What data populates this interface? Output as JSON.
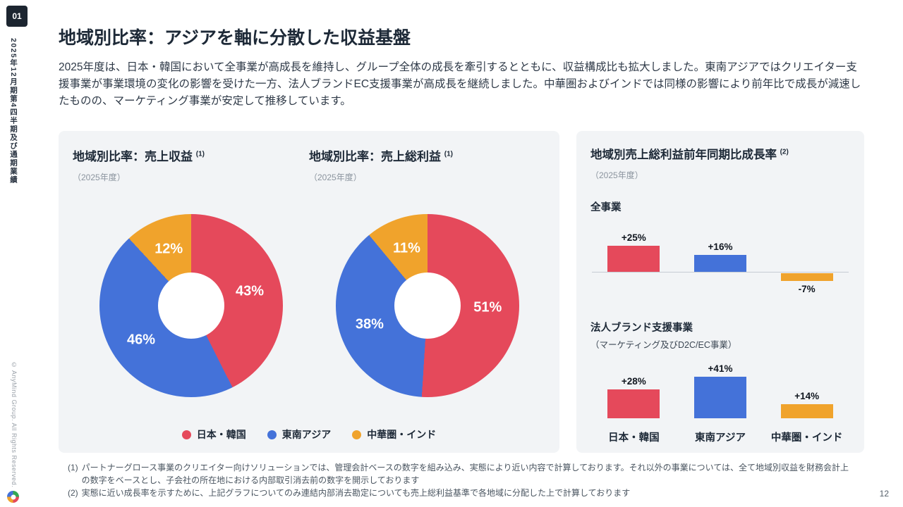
{
  "sidebar": {
    "chapter": "01",
    "vertical_title": "2025年12月期第4四半期及び通期業績",
    "copyright": "© AnyMind Group. All Rights Reserved."
  },
  "header": {
    "title": "地域別比率：アジアを軸に分散した収益基盤",
    "body": "2025年度は、日本・韓国において全事業が高成長を維持し、グループ全体の成長を牽引するとともに、収益構成比も拡大しました。東南アジアではクリエイター支援事業が事業環境の変化の影響を受けた一方、法人ブランドEC支援事業が高成長を継続しました。中華圏およびインドでは同様の影響により前年比で成長が減速したものの、マーケティング事業が安定して推移しています。"
  },
  "left_panel": {
    "charts": [
      {
        "title": "地域別比率：売上収益",
        "sup": "(1)",
        "subtitle": "（2025年度）"
      },
      {
        "title": "地域別比率：売上総利益",
        "sup": "(1)",
        "subtitle": "（2025年度）"
      }
    ],
    "legend": [
      {
        "label": "日本・韓国",
        "color": "#E5495B"
      },
      {
        "label": "東南アジア",
        "color": "#4472D9"
      },
      {
        "label": "中華圏・インド",
        "color": "#F0A32C"
      }
    ]
  },
  "right_panel": {
    "title": "地域別売上総利益前年同期比成長率",
    "sup": "(2)",
    "subtitle": "（2025年度）",
    "group1_label": "全事業",
    "group2_label": "法人ブランド支援事業",
    "group2_sublabel": "（マーケティング及びD2C/EC事業）",
    "categories": [
      "日本・韓国",
      "東南アジア",
      "中華圏・インド"
    ]
  },
  "chart_data": [
    {
      "type": "pie",
      "donut": true,
      "title": "地域別比率：売上収益 (1)",
      "subtitle": "（2025年度）",
      "labels": [
        "日本・韓国",
        "東南アジア",
        "中華圏・インド"
      ],
      "values": [
        43,
        46,
        12
      ],
      "value_labels": [
        "43%",
        "46%",
        "12%"
      ],
      "colors": [
        "#E5495B",
        "#4472D9",
        "#F0A32C"
      ]
    },
    {
      "type": "pie",
      "donut": true,
      "title": "地域別比率：売上総利益 (1)",
      "subtitle": "（2025年度）",
      "labels": [
        "日本・韓国",
        "東南アジア",
        "中華圏・インド"
      ],
      "values": [
        51,
        38,
        11
      ],
      "value_labels": [
        "51%",
        "38%",
        "11%"
      ],
      "colors": [
        "#E5495B",
        "#4472D9",
        "#F0A32C"
      ]
    },
    {
      "type": "bar",
      "title": "地域別売上総利益前年同期比成長率 (2) — 全事業",
      "categories": [
        "日本・韓国",
        "東南アジア",
        "中華圏・インド"
      ],
      "values": [
        25,
        16,
        -7
      ],
      "value_labels": [
        "+25%",
        "+16%",
        "-7%"
      ],
      "colors": [
        "#E5495B",
        "#4472D9",
        "#F0A32C"
      ]
    },
    {
      "type": "bar",
      "title": "地域別売上総利益前年同期比成長率 (2) — 法人ブランド支援事業（マーケティング及びD2C/EC事業）",
      "categories": [
        "日本・韓国",
        "東南アジア",
        "中華圏・インド"
      ],
      "values": [
        28,
        41,
        14
      ],
      "value_labels": [
        "+28%",
        "+41%",
        "+14%"
      ],
      "colors": [
        "#E5495B",
        "#4472D9",
        "#F0A32C"
      ]
    }
  ],
  "footnotes": [
    {
      "marker": "(1)",
      "text": "パートナーグロース事業のクリエイター向けソリューションでは、管理会計ベースの数字を組み込み、実態により近い内容で計算しております。それ以外の事業については、全て地域別収益を財務会計上の数字をベースとし、子会社の所在地における内部取引消去前の数字を開示しております"
    },
    {
      "marker": "(2)",
      "text": "実態に近い成長率を示すために、上記グラフについてのみ連結内部消去勘定についても売上総利益基準で各地域に分配した上で計算しております"
    }
  ],
  "page_number": "12"
}
